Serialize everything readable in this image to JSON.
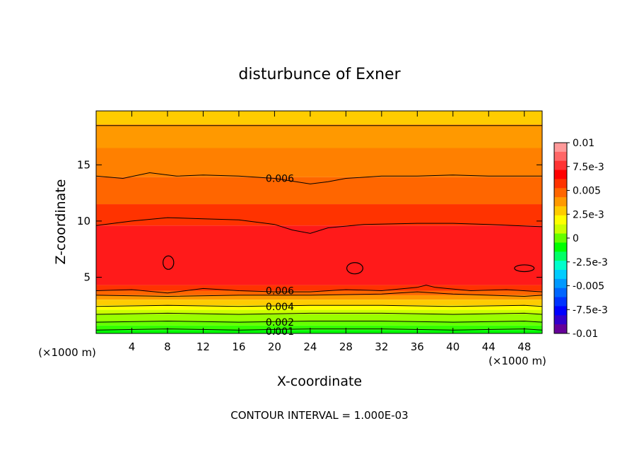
{
  "chart_data": {
    "type": "heatmap",
    "title": "disturbunce of Exner",
    "xlabel": "X-coordinate",
    "ylabel": "Z-coordinate",
    "xlim": [
      0,
      50
    ],
    "ylim": [
      0,
      19.8
    ],
    "x_unit_left": "(×1000 m)",
    "x_unit_right": "(×1000 m)",
    "xticks": [
      4,
      8,
      12,
      16,
      20,
      24,
      28,
      32,
      36,
      40,
      44,
      48
    ],
    "xtick_labels": [
      "4",
      "8",
      "12",
      "16",
      "20",
      "24",
      "28",
      "32",
      "36",
      "40",
      "44",
      "48"
    ],
    "yticks": [
      5,
      10,
      15
    ],
    "ytick_labels": [
      "5",
      "10",
      "15"
    ],
    "footer": "CONTOUR INTERVAL = 1.000E-03",
    "colorbar": {
      "labels": [
        "0.01",
        "7.5e-3",
        "0.005",
        "2.5e-3",
        "0",
        "-2.5e-3",
        "-0.005",
        "-7.5e-3",
        "-0.01"
      ],
      "label_values": [
        0.01,
        0.0075,
        0.005,
        0.0025,
        0,
        -0.0025,
        -0.005,
        -0.0075,
        -0.01
      ],
      "colors_top_to_bottom": [
        "#ff9999",
        "#ff6666",
        "#ff3333",
        "#ff0000",
        "#ff3300",
        "#ff6600",
        "#ff9900",
        "#ffcc00",
        "#ffff00",
        "#ccff00",
        "#66ff00",
        "#00ff00",
        "#00ff66",
        "#00ffcc",
        "#00ccff",
        "#0099ff",
        "#0066ff",
        "#0033ff",
        "#0000ff",
        "#3300cc",
        "#660099"
      ],
      "range": [
        -0.01,
        0.01
      ]
    },
    "contour_labels": [
      {
        "text": "0.006",
        "x": 20.6,
        "z": 13.8
      },
      {
        "text": "0.006",
        "x": 20.6,
        "z": 3.8
      },
      {
        "text": "0.004",
        "x": 20.6,
        "z": 2.4
      },
      {
        "text": "0.002",
        "x": 20.6,
        "z": 1.0
      },
      {
        "text": "0.001",
        "x": 20.6,
        "z": 0.2
      }
    ],
    "contour_lines": [
      {
        "level": 0.005,
        "x": [
          0,
          6,
          12,
          18,
          24,
          26,
          30,
          36,
          42,
          50
        ],
        "z": [
          18.5,
          18.5,
          18.5,
          18.5,
          18.5,
          18.5,
          18.5,
          18.5,
          18.5,
          18.5
        ]
      },
      {
        "level": 0.006,
        "x": [
          0,
          3,
          6,
          9,
          12,
          16,
          20,
          24,
          26,
          28,
          32,
          36,
          40,
          44,
          50
        ],
        "z": [
          14.0,
          13.8,
          14.3,
          14.0,
          14.1,
          14.0,
          13.8,
          13.3,
          13.5,
          13.8,
          14.0,
          14.0,
          14.1,
          14.0,
          14.0
        ]
      },
      {
        "level": 0.007,
        "x": [
          0,
          4,
          8,
          12,
          16,
          20,
          22,
          24,
          26,
          30,
          36,
          40,
          44,
          50
        ],
        "z": [
          9.6,
          10.0,
          10.3,
          10.2,
          10.1,
          9.7,
          9.2,
          8.9,
          9.4,
          9.7,
          9.8,
          9.8,
          9.7,
          9.5
        ]
      },
      {
        "level": 0.006,
        "x": [
          0,
          4,
          8,
          12,
          16,
          20,
          24,
          28,
          32,
          36,
          37,
          38,
          42,
          46,
          50
        ],
        "z": [
          3.8,
          3.9,
          3.6,
          4.0,
          3.8,
          3.7,
          3.7,
          3.9,
          3.8,
          4.1,
          4.3,
          4.1,
          3.8,
          3.9,
          3.7
        ]
      },
      {
        "level": 0.005,
        "x": [
          0,
          8,
          16,
          24,
          32,
          36,
          40,
          48,
          50
        ],
        "z": [
          3.4,
          3.3,
          3.4,
          3.4,
          3.5,
          3.7,
          3.5,
          3.3,
          3.4
        ]
      },
      {
        "level": 0.004,
        "x": [
          0,
          8,
          16,
          24,
          32,
          40,
          48,
          50
        ],
        "z": [
          2.4,
          2.5,
          2.4,
          2.5,
          2.5,
          2.4,
          2.5,
          2.4
        ]
      },
      {
        "level": 0.003,
        "x": [
          0,
          8,
          16,
          24,
          32,
          40,
          48,
          50
        ],
        "z": [
          1.7,
          1.8,
          1.7,
          1.8,
          1.8,
          1.7,
          1.8,
          1.7
        ]
      },
      {
        "level": 0.002,
        "x": [
          0,
          8,
          16,
          24,
          32,
          40,
          48,
          50
        ],
        "z": [
          1.0,
          1.1,
          1.0,
          1.1,
          1.1,
          1.0,
          1.1,
          1.0
        ]
      },
      {
        "level": 0.001,
        "x": [
          0,
          8,
          16,
          24,
          32,
          40,
          48,
          50
        ],
        "z": [
          0.3,
          0.4,
          0.3,
          0.4,
          0.4,
          0.3,
          0.4,
          0.3
        ]
      }
    ],
    "closed_contours": [
      {
        "level": 0.008,
        "cx": 8.1,
        "cz": 6.3,
        "rx": 0.6,
        "rz": 0.6
      },
      {
        "level": 0.008,
        "cx": 29.0,
        "cz": 5.8,
        "rx": 0.9,
        "rz": 0.5
      },
      {
        "level": 0.008,
        "cx": 48.0,
        "cz": 5.8,
        "rx": 1.1,
        "rz": 0.3
      }
    ],
    "field_bands": [
      {
        "z_min": 18.6,
        "z_max": 19.8,
        "color": "#ffcc00"
      },
      {
        "z_min": 16.5,
        "z_max": 18.6,
        "color": "#ff9900"
      },
      {
        "z_min": 13.9,
        "z_max": 16.5,
        "color": "#ff8000"
      },
      {
        "z_min": 11.5,
        "z_max": 13.9,
        "color": "#ff6600"
      },
      {
        "z_min": 9.6,
        "z_max": 11.5,
        "color": "#ff3300"
      },
      {
        "z_min": 4.3,
        "z_max": 9.6,
        "color": "#ff1a1a"
      },
      {
        "z_min": 3.8,
        "z_max": 4.3,
        "color": "#ff3300"
      },
      {
        "z_min": 3.4,
        "z_max": 3.8,
        "color": "#ff6600"
      },
      {
        "z_min": 3.0,
        "z_max": 3.4,
        "color": "#ff9900"
      },
      {
        "z_min": 2.5,
        "z_max": 3.0,
        "color": "#ffcc00"
      },
      {
        "z_min": 2.1,
        "z_max": 2.5,
        "color": "#ffff00"
      },
      {
        "z_min": 1.7,
        "z_max": 2.1,
        "color": "#ccff00"
      },
      {
        "z_min": 1.1,
        "z_max": 1.7,
        "color": "#99ff00"
      },
      {
        "z_min": 0.7,
        "z_max": 1.1,
        "color": "#66ff00"
      },
      {
        "z_min": 0.3,
        "z_max": 0.7,
        "color": "#33ff00"
      },
      {
        "z_min": 0.0,
        "z_max": 0.3,
        "color": "#00ff00"
      }
    ]
  }
}
